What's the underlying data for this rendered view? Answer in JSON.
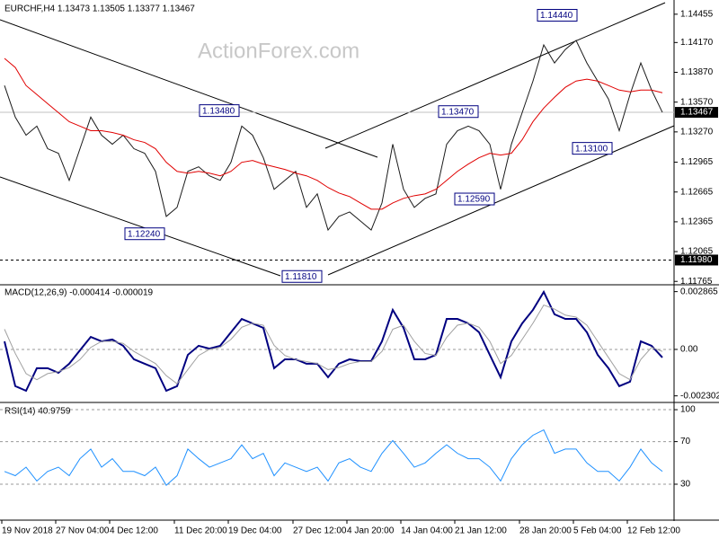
{
  "chart_data": [
    {
      "type": "line",
      "title": "EURCHF,H4  1.13473 1.13505 1.13377 1.13467",
      "watermark": "ActionForex.com",
      "categories": [
        "19 Nov 2018",
        null,
        null,
        null,
        null,
        "27 Nov 04:00",
        null,
        null,
        null,
        null,
        "4 Dec 12:00",
        null,
        null,
        null,
        null,
        null,
        "11 Dec 20:00",
        null,
        null,
        null,
        null,
        "19 Dec 04:00",
        null,
        null,
        null,
        null,
        null,
        "27 Dec 12:00",
        null,
        null,
        null,
        null,
        "4 Jan 20:00",
        null,
        null,
        null,
        null,
        "14 Jan 04:00",
        null,
        null,
        null,
        null,
        "21 Jan 12:00",
        null,
        null,
        null,
        null,
        null,
        "28 Jan 20:00",
        null,
        null,
        null,
        null,
        "5 Feb 04:00",
        null,
        null,
        null,
        null,
        "12 Feb 12:00",
        null,
        null,
        null
      ],
      "series": [
        {
          "color": "#1a1a1a",
          "values": [
            1.13737,
            1.13419,
            1.13237,
            1.13328,
            1.13101,
            1.13055,
            1.12782,
            1.13101,
            1.13419,
            1.13237,
            1.13146,
            1.13237,
            1.13101,
            1.13055,
            1.12873,
            1.12419,
            1.1251,
            1.12873,
            1.12919,
            1.12828,
            1.12782,
            1.12964,
            1.13328,
            1.13237,
            1.1301,
            1.12692,
            1.12782,
            1.12873,
            1.1251,
            1.12646,
            1.12282,
            1.12419,
            1.12464,
            1.12373,
            1.12282,
            1.12555,
            1.13146,
            1.12692,
            1.1251,
            1.12601,
            1.12646,
            1.13146,
            1.13282,
            1.13328,
            1.13282,
            1.13146,
            1.12692,
            1.13146,
            1.13464,
            1.13782,
            1.14146,
            1.13964,
            1.141,
            1.14191,
            1.13964,
            1.13782,
            1.13601,
            1.13282,
            1.13646,
            1.13964,
            1.13691,
            1.13467
          ]
        },
        {
          "color": "#e00000",
          "values": [
            1.1401,
            1.13919,
            1.13737,
            1.13646,
            1.13555,
            1.13464,
            1.13373,
            1.13328,
            1.13282,
            1.13282,
            1.13264,
            1.13237,
            1.13191,
            1.13164,
            1.13101,
            1.12964,
            1.12873,
            1.12855,
            1.12873,
            1.12855,
            1.12828,
            1.12873,
            1.12964,
            1.12982,
            1.12946,
            1.12919,
            1.12892,
            1.12855,
            1.12828,
            1.12782,
            1.1271,
            1.12655,
            1.12619,
            1.12555,
            1.12492,
            1.12492,
            1.12555,
            1.12601,
            1.12628,
            1.12646,
            1.12692,
            1.12782,
            1.12873,
            1.12946,
            1.1301,
            1.13055,
            1.13037,
            1.13055,
            1.13191,
            1.13373,
            1.1351,
            1.13619,
            1.13719,
            1.13782,
            1.13801,
            1.13782,
            1.13737,
            1.13691,
            1.13673,
            1.13691,
            1.13691,
            1.13664
          ]
        }
      ],
      "ylim": [
        1.1174,
        1.1458
      ],
      "yticks": [
        1.14455,
        {
          "value": 1.1417,
          "label": "1.14170"
        },
        {
          "value": 1.1387,
          "label": "1.13870"
        },
        {
          "value": 1.1357,
          "label": "1.13570"
        },
        {
          "value": 1.1327,
          "label": "1.13270"
        },
        1.12965,
        1.12665,
        1.12365,
        1.12065,
        1.11765
      ],
      "price_line": 1.13467,
      "support_line": {
        "value": 1.1198,
        "label": "1.11980"
      },
      "annotations": [
        {
          "value": 1.1444,
          "label": "1.14440"
        },
        {
          "value": 1.1348,
          "label": "1.13480"
        },
        {
          "value": 1.1347,
          "label": "1.13470"
        },
        {
          "value": 1.131,
          "label": "1.13100"
        },
        {
          "value": 1.1259,
          "label": "1.12590"
        },
        {
          "value": 1.1224,
          "label": "1.12240"
        },
        {
          "value": 1.1181,
          "label": "1.11810"
        }
      ]
    },
    {
      "type": "line",
      "title": "MACD(12,26,9) -0.000414 -0.000019",
      "series": [
        {
          "color": "#000080",
          "values": [
            0.0004,
            -0.00182,
            -0.00205,
            -0.00093,
            -0.00093,
            -0.00116,
            -0.00071,
            -4e-05,
            0.00062,
            0.0004,
            0.00049,
            0.00018,
            -0.00049,
            -0.00071,
            -0.00093,
            -0.00205,
            -0.00182,
            -0.00027,
            0.00018,
            4e-05,
            0.00018,
            0.00085,
            0.00151,
            0.00129,
            0.00107,
            -0.00093,
            -0.00049,
            -0.00049,
            -0.00071,
            -0.00071,
            -0.00138,
            -0.00071,
            -0.00049,
            -0.00058,
            -0.00058,
            0.0004,
            0.00196,
            0.00107,
            -0.00049,
            -0.00049,
            -0.00027,
            0.00151,
            0.00151,
            0.00129,
            0.00085,
            -0.00027,
            -0.00138,
            0.0004,
            0.00129,
            0.00196,
            0.00285,
            0.00174,
            0.00151,
            0.00151,
            0.00085,
            -0.00027,
            -0.00093,
            -0.00182,
            -0.0016,
            0.0004,
            0.00018,
            -0.0004
          ]
        },
        {
          "color": "#a0a0a0",
          "values": [
            0.001,
            -0.0002,
            -0.0012,
            -0.0015,
            -0.0012,
            -0.0011,
            -0.0009,
            -0.0005,
            0.0001,
            0.0004,
            0.0004,
            0.0003,
            -0.0001,
            -0.0004,
            -0.0007,
            -0.0013,
            -0.0017,
            -0.001,
            -0.0003,
            0,
            0.0001,
            0.0005,
            0.0011,
            0.0013,
            0.0012,
            0.0002,
            -0.0003,
            -0.0005,
            -0.0006,
            -0.0007,
            -0.001,
            -0.0009,
            -0.0007,
            -0.0006,
            -0.0006,
            -0.0001,
            0.001,
            0.0012,
            0.0004,
            -0.0002,
            -0.0003,
            0.0006,
            0.0012,
            0.0013,
            0.0011,
            0.0004,
            -0.0007,
            -0.0003,
            0.0005,
            0.0013,
            0.0022,
            0.002,
            0.0017,
            0.0016,
            0.0012,
            0.0004,
            -0.0004,
            -0.0012,
            -0.0015,
            -0.0005,
            0.0001,
            -0.0001
          ]
        }
      ],
      "ylim": [
        -0.00254,
        0.00316
      ],
      "yticks": [
        0.002865,
        {
          "value": 0,
          "label": "0.00"
        },
        -0.002302
      ],
      "zero_line": true
    },
    {
      "type": "line",
      "title": "RSI(14) 40.9759",
      "series": [
        {
          "color": "#1e90ff",
          "values": [
            42,
            38,
            46,
            33,
            42,
            46,
            38,
            54,
            63,
            46,
            54,
            42,
            42,
            38,
            46,
            29,
            38,
            63,
            54,
            46,
            50,
            54,
            67,
            54,
            59,
            38,
            50,
            46,
            42,
            46,
            33,
            50,
            54,
            46,
            42,
            59,
            71,
            59,
            46,
            50,
            59,
            67,
            59,
            54,
            54,
            46,
            33,
            54,
            67,
            76,
            81,
            59,
            63,
            63,
            50,
            42,
            42,
            33,
            46,
            63,
            50,
            42
          ]
        }
      ],
      "ylim": [
        -2.9,
        105.1
      ],
      "yticks": [
        100,
        70,
        30
      ],
      "grid": true
    }
  ]
}
